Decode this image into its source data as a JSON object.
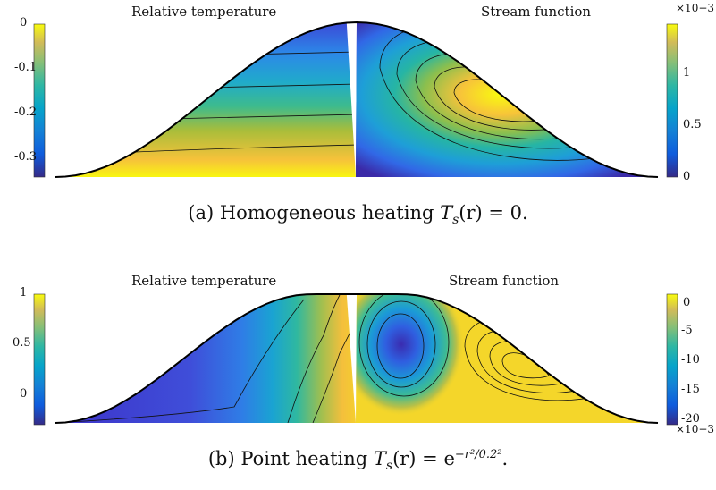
{
  "chart_data": [
    {
      "type": "heatmap",
      "left_title": "Relative temperature",
      "right_title": "Stream function",
      "caption": "(a) Homogeneous heating T_s(r) = 0.",
      "left_colorbar": {
        "range": [
          -0.34,
          0.0
        ],
        "ticks": [
          "0",
          "-0.1",
          "-0.2",
          "-0.3"
        ],
        "tick_values": [
          0,
          -0.1,
          -0.2,
          -0.3
        ]
      },
      "right_colorbar": {
        "range": [
          0,
          0.0014
        ],
        "ticks": [
          "1",
          "0.5",
          "0"
        ],
        "tick_values": [
          0.001,
          0.0005,
          0
        ],
        "exponent": "×10−3"
      },
      "colormap": "parula",
      "domain_shape": "cosine bump, symmetric about axis",
      "temperature_field": "horizontal layers: coolest (about -0.34) at the top of the bump, warmest (about 0) at the base",
      "stream_function_field": "single clockwise cell, maximum about 1.4e-3 centred at mid-height of the right half"
    },
    {
      "type": "heatmap",
      "left_title": "Relative temperature",
      "right_title": "Stream function",
      "caption": "(b) Point heating T_s(r) = e^(−r²/0.2²).",
      "left_colorbar": {
        "range": [
          -0.4,
          1.0
        ],
        "ticks": [
          "1",
          "0.5",
          "0"
        ],
        "tick_values": [
          1,
          0.5,
          0
        ]
      },
      "right_colorbar": {
        "range": [
          -0.02,
          0.002
        ],
        "ticks": [
          "0",
          "-5",
          "-10",
          "-15",
          "-20"
        ],
        "tick_values": [
          0,
          -0.005,
          -0.01,
          -0.015,
          -0.02
        ],
        "exponent": "×10−3"
      },
      "colormap": "parula",
      "domain_shape": "cosine bump, symmetric about axis",
      "temperature_field": "hot (about 1) near the axis, cooling to about -0.4 toward the outer edge",
      "stream_function_field": "strong negative cell (about -20e-3) near the axis, weak positive cell toward the outer edge"
    }
  ],
  "captions": {
    "a_text": "(a) Homogeneous heating ",
    "a_math_main": "T",
    "a_math_sub": "s",
    "a_math_tail": "(r) = 0.",
    "b_text": "(b) Point heating ",
    "b_math_main": "T",
    "b_math_sub": "s",
    "b_math_mid": "(r) = e",
    "b_math_sup": "−r²/0.2²",
    "b_math_tail": "."
  }
}
